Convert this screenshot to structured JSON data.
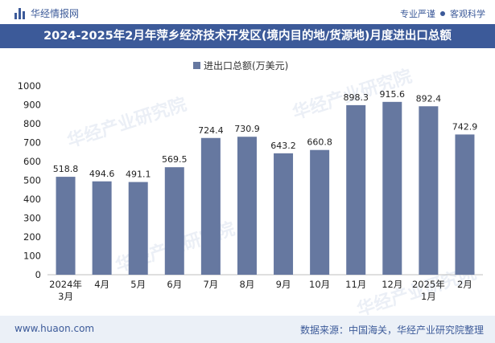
{
  "header": {
    "brand": "华经情报网",
    "tagline_left": "专业严谨",
    "tagline_right": "客观科学"
  },
  "title": "2024-2025年2月年萍乡经济技术开发区(境内目的地/货源地)月度进出口总额",
  "watermark": "华经产业研究院",
  "footer": {
    "website": "www.huaon.com",
    "source": "数据来源：中国海关，华经产业研究院整理"
  },
  "colors": {
    "bar": "#6678a0",
    "brand": "#3c5a99"
  },
  "chart_data": {
    "type": "bar",
    "title": "2024-2025年2月年萍乡经济技术开发区(境内目的地/货源地)月度进出口总额",
    "legend": "进出口总额(万美元)",
    "legend_position": "top-center",
    "categories": [
      [
        "2024年",
        "3月"
      ],
      [
        "4月"
      ],
      [
        "5月"
      ],
      [
        "6月"
      ],
      [
        "7月"
      ],
      [
        "8月"
      ],
      [
        "9月"
      ],
      [
        "10月"
      ],
      [
        "11月"
      ],
      [
        "12月"
      ],
      [
        "2025年",
        "1月"
      ],
      [
        "2月"
      ]
    ],
    "values": [
      518.8,
      494.6,
      491.1,
      569.5,
      724.4,
      730.9,
      643.2,
      660.8,
      898.3,
      915.6,
      892.4,
      742.9
    ],
    "yticks": [
      0,
      100,
      200,
      300,
      400,
      500,
      600,
      700,
      800,
      900,
      1000
    ],
    "ylim": [
      0,
      1000
    ],
    "grid": false
  }
}
